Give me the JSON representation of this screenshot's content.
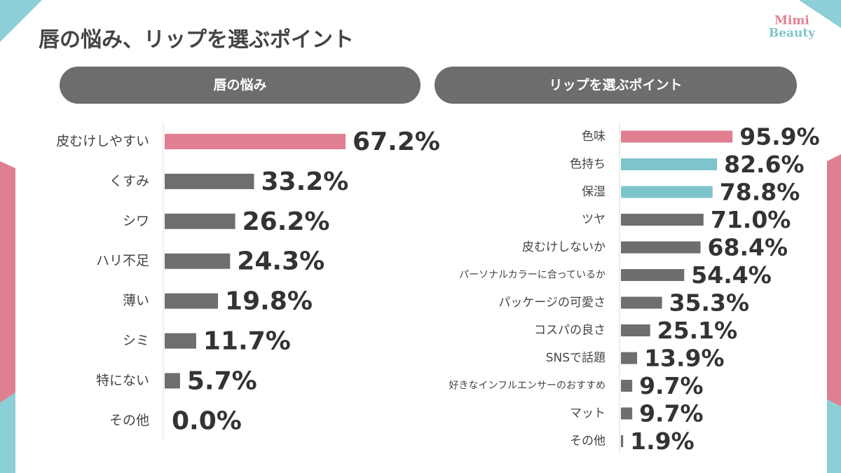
{
  "title": "唇の悩み、リップを選ぶポイント",
  "logo": [
    "Mimi",
    "Beauty"
  ],
  "chart_data": [
    {
      "type": "bar",
      "title": "唇の悩み",
      "categories": [
        "皮むけしやすい",
        "くすみ",
        "シワ",
        "ハリ不足",
        "薄い",
        "シミ",
        "特にない",
        "その他"
      ],
      "values": [
        67.2,
        33.2,
        26.2,
        24.3,
        19.8,
        11.7,
        5.7,
        0.0
      ],
      "value_labels": [
        "67.2%",
        "33.2%",
        "26.2%",
        "24.3%",
        "19.8%",
        "11.7%",
        "5.7%",
        "0.0%"
      ],
      "colors": [
        "#e07f92",
        "#6e6e6e",
        "#6e6e6e",
        "#6e6e6e",
        "#6e6e6e",
        "#6e6e6e",
        "#6e6e6e",
        "#6e6e6e"
      ]
    },
    {
      "type": "bar",
      "title": "リップを選ぶポイント",
      "categories": [
        "色味",
        "色持ち",
        "保湿",
        "ツヤ",
        "皮むけしないか",
        "パーソナルカラーに合っているか",
        "パッケージの可愛さ",
        "コスパの良さ",
        "SNSで話題",
        "好きなインフルエンサーのおすすめ",
        "マット",
        "その他"
      ],
      "values": [
        95.9,
        82.6,
        78.8,
        71.0,
        68.4,
        54.4,
        35.3,
        25.1,
        13.9,
        9.7,
        9.7,
        1.9
      ],
      "value_labels": [
        "95.9%",
        "82.6%",
        "78.8%",
        "71.0%",
        "68.4%",
        "54.4%",
        "35.3%",
        "25.1%",
        "13.9%",
        "9.7%",
        "9.7%",
        "1.9%"
      ],
      "colors": [
        "#e07f92",
        "#7fc4cd",
        "#7fc4cd",
        "#6e6e6e",
        "#6e6e6e",
        "#6e6e6e",
        "#6e6e6e",
        "#6e6e6e",
        "#6e6e6e",
        "#6e6e6e",
        "#6e6e6e",
        "#6e6e6e"
      ]
    }
  ]
}
